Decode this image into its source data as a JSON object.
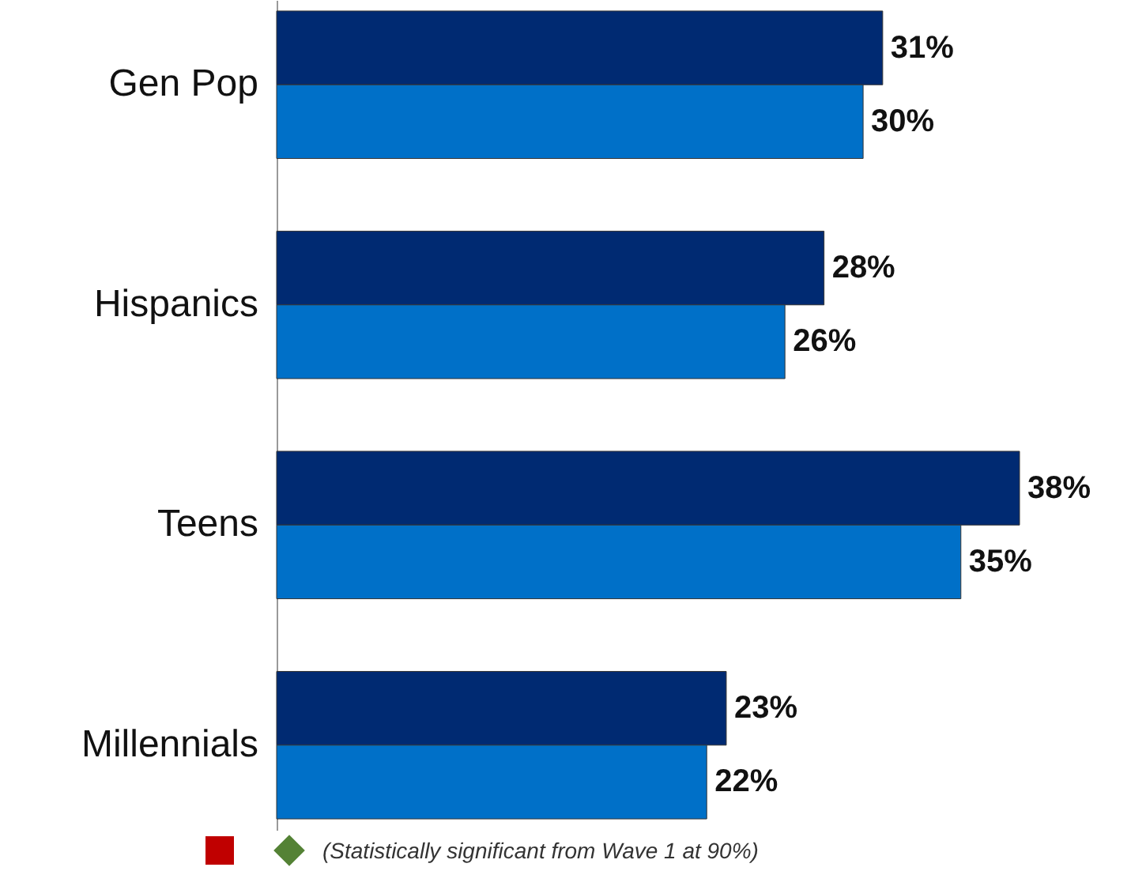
{
  "chart_data": {
    "type": "bar",
    "orientation": "horizontal",
    "categories": [
      "Gen Pop",
      "Hispanics",
      "Teens",
      "Millennials"
    ],
    "series": [
      {
        "color": "#002a72",
        "values": [
          31,
          28,
          38,
          23
        ],
        "value_labels": [
          "31%",
          "28%",
          "38%",
          "23%"
        ]
      },
      {
        "color": "#0070c8",
        "values": [
          30,
          26,
          35,
          22
        ],
        "value_labels": [
          "30%",
          "26%",
          "35%",
          "22%"
        ]
      }
    ],
    "tick_labels": "y",
    "annotations": [
      "(Statistically significant from Wave 1 at 90%)"
    ]
  }
}
